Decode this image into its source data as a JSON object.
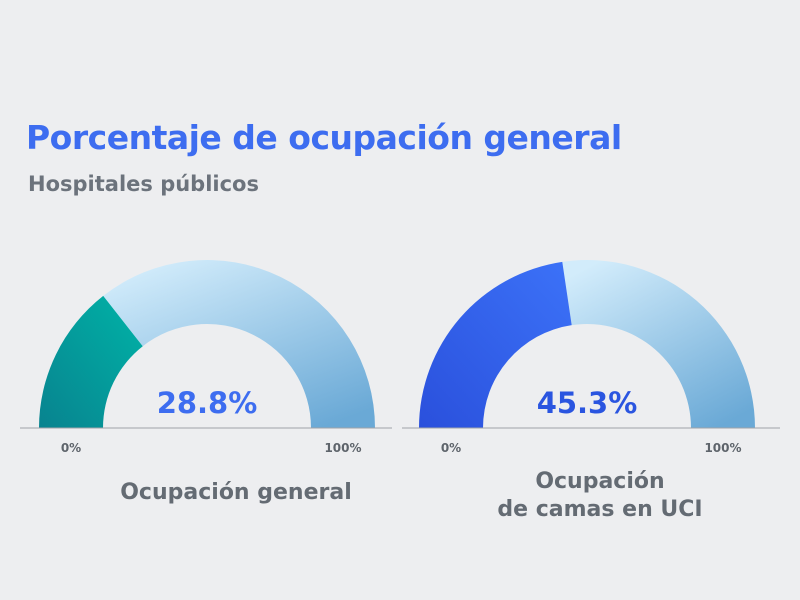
{
  "header": {
    "title": "Porcentaje de ocupación general",
    "subtitle": "Hospitales públicos"
  },
  "colors": {
    "title": "#3d6df0",
    "subtitle": "#6c737c",
    "track_light": "#d2ecfb",
    "track_dark": "#6aa9d6"
  },
  "chart_data": [
    {
      "type": "gauge",
      "title": "Ocupación general",
      "value": 28.8,
      "value_label": "28.8%",
      "range": [
        0,
        100
      ],
      "min_label": "0%",
      "max_label": "100%",
      "fill_color_start": "#00b3a7",
      "fill_color_end": "#08838f",
      "value_color": "#3d6df0"
    },
    {
      "type": "gauge",
      "title": "Ocupación\nde camas en UCI",
      "value": 45.3,
      "value_label": "45.3%",
      "range": [
        0,
        100
      ],
      "min_label": "0%",
      "max_label": "100%",
      "fill_color_start": "#3c72f8",
      "fill_color_end": "#2a50dc",
      "value_color": "#2a55e0"
    }
  ]
}
